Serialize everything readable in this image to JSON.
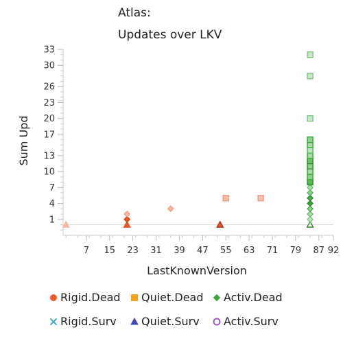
{
  "chart_data": {
    "type": "scatter",
    "title": "Atlas:",
    "subtitle": "Updates over LKV",
    "xlabel": "LastKnownVersion",
    "ylabel": "Sum Upd",
    "xlim": [
      -1,
      92
    ],
    "ylim": [
      -2,
      33
    ],
    "x_ticks": [
      7,
      15,
      23,
      31,
      39,
      47,
      55,
      63,
      71,
      79,
      87,
      92
    ],
    "y_ticks": [
      1,
      4,
      7,
      10,
      13,
      17,
      20,
      23,
      26,
      30,
      33
    ],
    "colors": {
      "rigid_dead": "#f05a28",
      "quiet_dead": "#f7a21b",
      "activ_dead": "#3aa63a",
      "rigid_surv": "#4aa8c0",
      "quiet_surv": "#3f48b5",
      "activ_surv": "#9b59c4"
    },
    "legend": [
      {
        "label": "Rigid.Dead",
        "marker": "circle",
        "color": "#f05a28"
      },
      {
        "label": "Quiet.Dead",
        "marker": "square",
        "color": "#f7a21b"
      },
      {
        "label": "Activ.Dead",
        "marker": "diamond",
        "color": "#3aa63a"
      },
      {
        "label": "Rigid.Surv",
        "marker": "x",
        "color": "#4aa8c0"
      },
      {
        "label": "Quiet.Surv",
        "marker": "triangle",
        "color": "#3f48b5"
      },
      {
        "label": "Activ.Surv",
        "marker": "ring",
        "color": "#9b59c4"
      }
    ],
    "points": [
      {
        "x": 0,
        "y": 0,
        "marker": "triangle",
        "fill": "#f7b8a8",
        "stroke": "#f7b8a8",
        "filled": true
      },
      {
        "x": 21,
        "y": 0,
        "marker": "triangle",
        "fill": "#f05a28",
        "stroke": "#e05020",
        "filled": true
      },
      {
        "x": 21,
        "y": 1,
        "marker": "diamond",
        "fill": "#f05a28",
        "stroke": "#d04010",
        "filled": true
      },
      {
        "x": 21,
        "y": 2,
        "marker": "diamond",
        "fill": "#f9c0b0",
        "stroke": "#f29a86",
        "filled": true
      },
      {
        "x": 36,
        "y": 3,
        "marker": "diamond",
        "fill": "#f9b8a0",
        "stroke": "#f2a080",
        "filled": true
      },
      {
        "x": 53,
        "y": 0,
        "marker": "triangle",
        "fill": "#f05a28",
        "stroke": "#a03010",
        "filled": true
      },
      {
        "x": 55,
        "y": 5,
        "marker": "square",
        "fill": "#f9c0a8",
        "stroke": "#f29a80",
        "filled": true
      },
      {
        "x": 67,
        "y": 5,
        "marker": "square",
        "fill": "#f9c0a8",
        "stroke": "#f29a80",
        "filled": true
      },
      {
        "x": 84,
        "y": 0,
        "marker": "triangle",
        "fill": "none",
        "stroke": "#2a8a2a",
        "filled": false
      },
      {
        "x": 84,
        "y": 1,
        "marker": "diamond",
        "fill": "#bfe6bf",
        "stroke": "#7cc47c",
        "filled": true
      },
      {
        "x": 84,
        "y": 2,
        "marker": "diamond",
        "fill": "#a8dca8",
        "stroke": "#6cbc6c",
        "filled": true
      },
      {
        "x": 84,
        "y": 3,
        "marker": "diamond",
        "fill": "#8fd18f",
        "stroke": "#4caa4c",
        "filled": true
      },
      {
        "x": 84,
        "y": 4,
        "marker": "diamond",
        "fill": "#3aa63a",
        "stroke": "#2a8a2a",
        "filled": true
      },
      {
        "x": 84,
        "y": 5,
        "marker": "diamond",
        "fill": "#4caf4c",
        "stroke": "#2a8a2a",
        "filled": true
      },
      {
        "x": 84,
        "y": 6,
        "marker": "diamond",
        "fill": "#8fd18f",
        "stroke": "#5cb25c",
        "filled": true
      },
      {
        "x": 84,
        "y": 7,
        "marker": "diamond",
        "fill": "#a8dca8",
        "stroke": "#6cbc6c",
        "filled": true
      },
      {
        "x": 84,
        "y": 8,
        "marker": "square",
        "fill": "#5cb85c",
        "stroke": "#2a8a2a",
        "filled": true
      },
      {
        "x": 84,
        "y": 9,
        "marker": "square",
        "fill": "#8fd18f",
        "stroke": "#3aa63a",
        "filled": true
      },
      {
        "x": 84,
        "y": 10,
        "marker": "square",
        "fill": "#a8dca8",
        "stroke": "#3aa63a",
        "filled": true
      },
      {
        "x": 84,
        "y": 11,
        "marker": "square",
        "fill": "#8fd18f",
        "stroke": "#2a8a2a",
        "filled": true
      },
      {
        "x": 84,
        "y": 12,
        "marker": "square",
        "fill": "#6cc26c",
        "stroke": "#2a8a2a",
        "filled": true
      },
      {
        "x": 84,
        "y": 13,
        "marker": "square",
        "fill": "#a8dca8",
        "stroke": "#3aa63a",
        "filled": true
      },
      {
        "x": 84,
        "y": 14,
        "marker": "square",
        "fill": "#bfe6bf",
        "stroke": "#5cb25c",
        "filled": true
      },
      {
        "x": 84,
        "y": 15,
        "marker": "square",
        "fill": "#a8dca8",
        "stroke": "#3aa63a",
        "filled": true
      },
      {
        "x": 84,
        "y": 16,
        "marker": "square",
        "fill": "#8fd18f",
        "stroke": "#3aa63a",
        "filled": true
      },
      {
        "x": 84,
        "y": 20,
        "marker": "square",
        "fill": "#c8eac8",
        "stroke": "#7cc47c",
        "filled": true
      },
      {
        "x": 84,
        "y": 28,
        "marker": "square",
        "fill": "#c8eac8",
        "stroke": "#7cc47c",
        "filled": true
      },
      {
        "x": 84,
        "y": 32,
        "marker": "square",
        "fill": "#c8eac8",
        "stroke": "#7cc47c",
        "filled": true
      }
    ]
  }
}
